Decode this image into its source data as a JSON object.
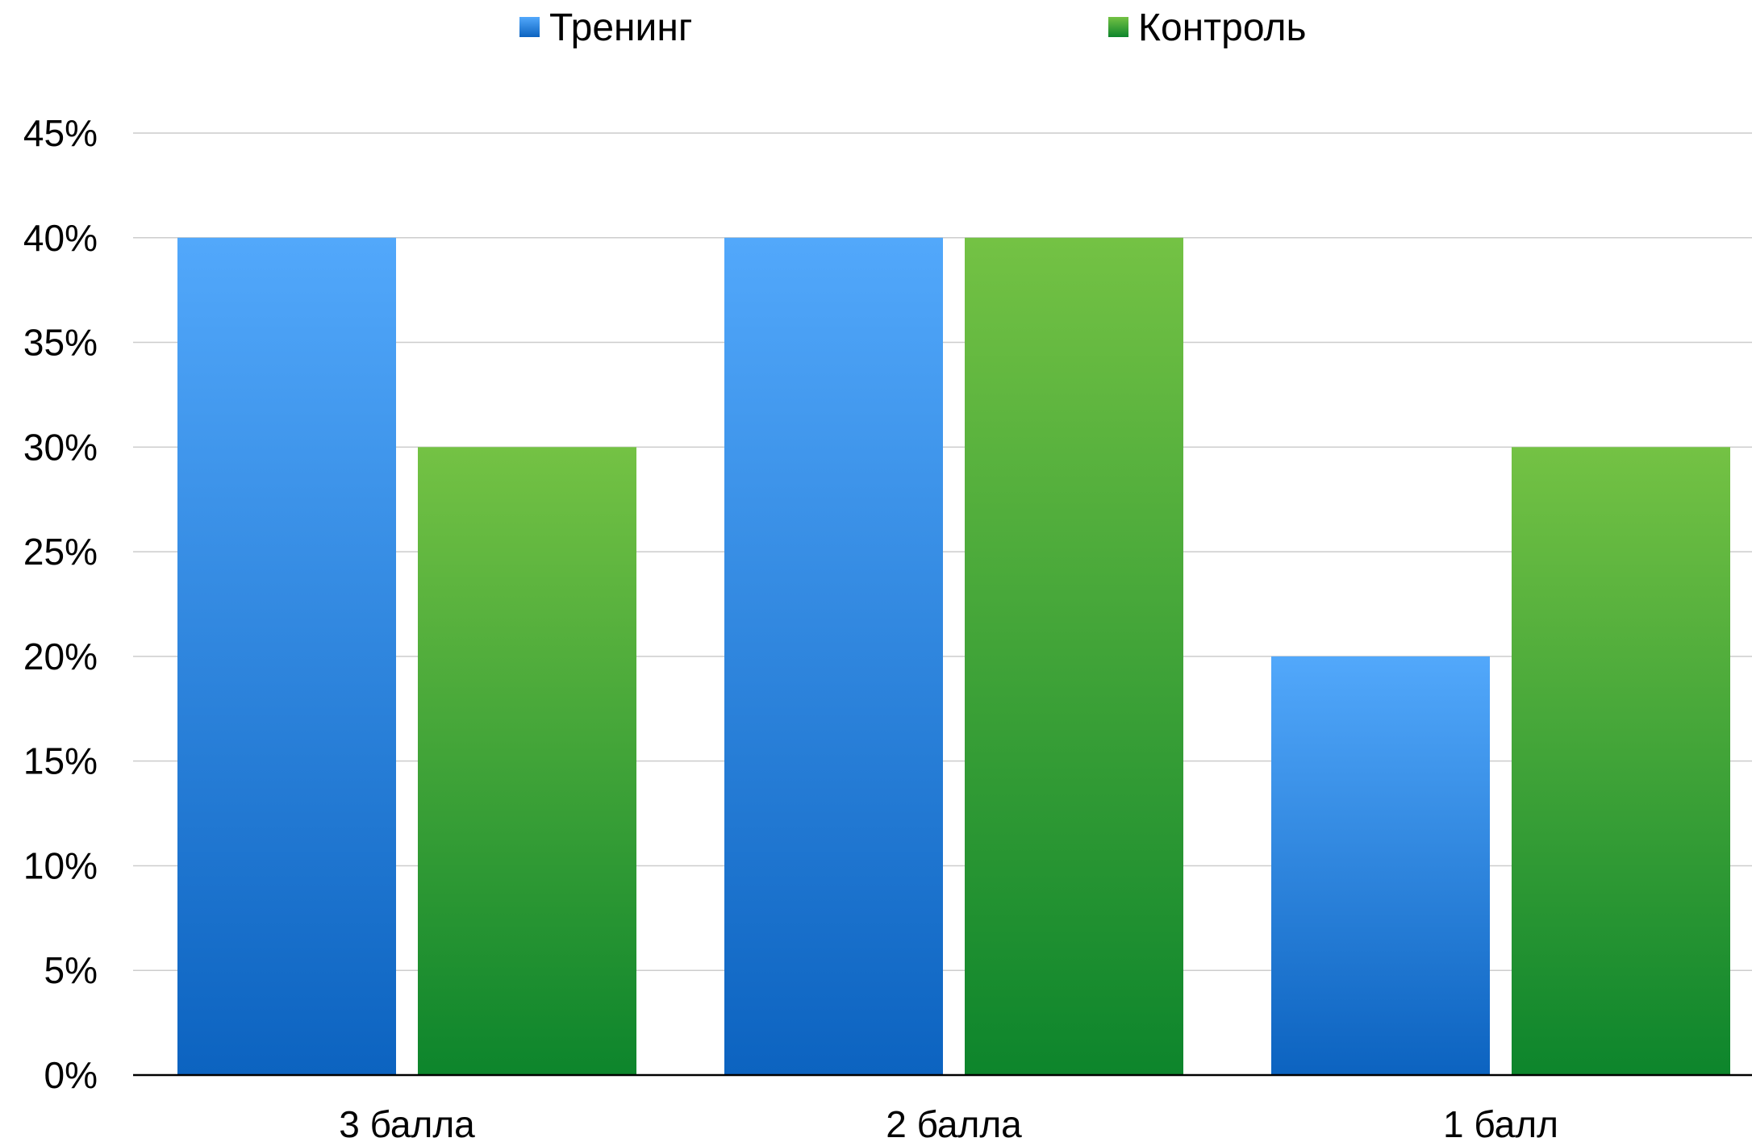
{
  "chart_data": {
    "type": "bar",
    "categories": [
      "3 балла",
      "2 балла",
      "1 балл"
    ],
    "series": [
      {
        "name": "Тренинг",
        "values": [
          40,
          40,
          20
        ],
        "color_top": "#52a8fb",
        "color_bottom": "#0c63c0"
      },
      {
        "name": "Контроль",
        "values": [
          30,
          40,
          30
        ],
        "color_top": "#74c244",
        "color_bottom": "#0d852c"
      }
    ],
    "y_ticks": [
      "0%",
      "5%",
      "10%",
      "15%",
      "20%",
      "25%",
      "30%",
      "35%",
      "40%",
      "45%"
    ],
    "ylim": [
      0,
      45
    ],
    "y_unit": "%",
    "grid": true,
    "grid_color": "#cccccc",
    "axis_color": "#000000",
    "legend_position": "top-center",
    "title": "",
    "xlabel": "",
    "ylabel": ""
  }
}
